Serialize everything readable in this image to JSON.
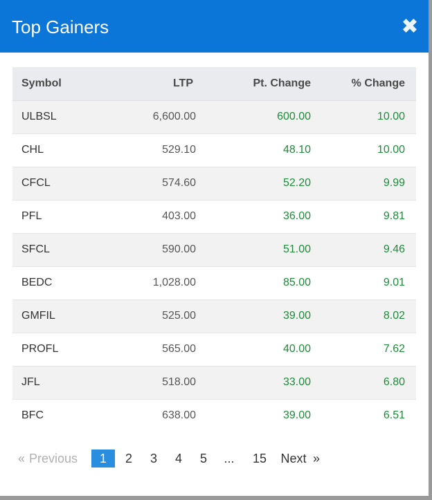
{
  "modal": {
    "title": "Top Gainers",
    "close_glyph": "✖"
  },
  "table": {
    "headers": {
      "symbol": "Symbol",
      "ltp": "LTP",
      "pt_change": "Pt. Change",
      "pct_change": "% Change"
    },
    "rows": [
      {
        "symbol": "ULBSL",
        "ltp": "6,600.00",
        "pt_change": "600.00",
        "pct_change": "10.00"
      },
      {
        "symbol": "CHL",
        "ltp": "529.10",
        "pt_change": "48.10",
        "pct_change": "10.00"
      },
      {
        "symbol": "CFCL",
        "ltp": "574.60",
        "pt_change": "52.20",
        "pct_change": "9.99"
      },
      {
        "symbol": "PFL",
        "ltp": "403.00",
        "pt_change": "36.00",
        "pct_change": "9.81"
      },
      {
        "symbol": "SFCL",
        "ltp": "590.00",
        "pt_change": "51.00",
        "pct_change": "9.46"
      },
      {
        "symbol": "BEDC",
        "ltp": "1,028.00",
        "pt_change": "85.00",
        "pct_change": "9.01"
      },
      {
        "symbol": "GMFIL",
        "ltp": "525.00",
        "pt_change": "39.00",
        "pct_change": "8.02"
      },
      {
        "symbol": "PROFL",
        "ltp": "565.00",
        "pt_change": "40.00",
        "pct_change": "7.62"
      },
      {
        "symbol": "JFL",
        "ltp": "518.00",
        "pt_change": "33.00",
        "pct_change": "6.80"
      },
      {
        "symbol": "BFC",
        "ltp": "638.00",
        "pt_change": "39.00",
        "pct_change": "6.51"
      }
    ]
  },
  "pagination": {
    "prev_arrow": "«",
    "previous": "Previous",
    "pages": [
      "1",
      "2",
      "3",
      "4",
      "5"
    ],
    "ellipsis": "...",
    "last_page": "15",
    "next": "Next",
    "next_arrow": "»",
    "current": "1"
  },
  "colors": {
    "header_bg": "#0b75d8",
    "gain": "#1e8a3a",
    "active_page": "#2a8ee0"
  }
}
